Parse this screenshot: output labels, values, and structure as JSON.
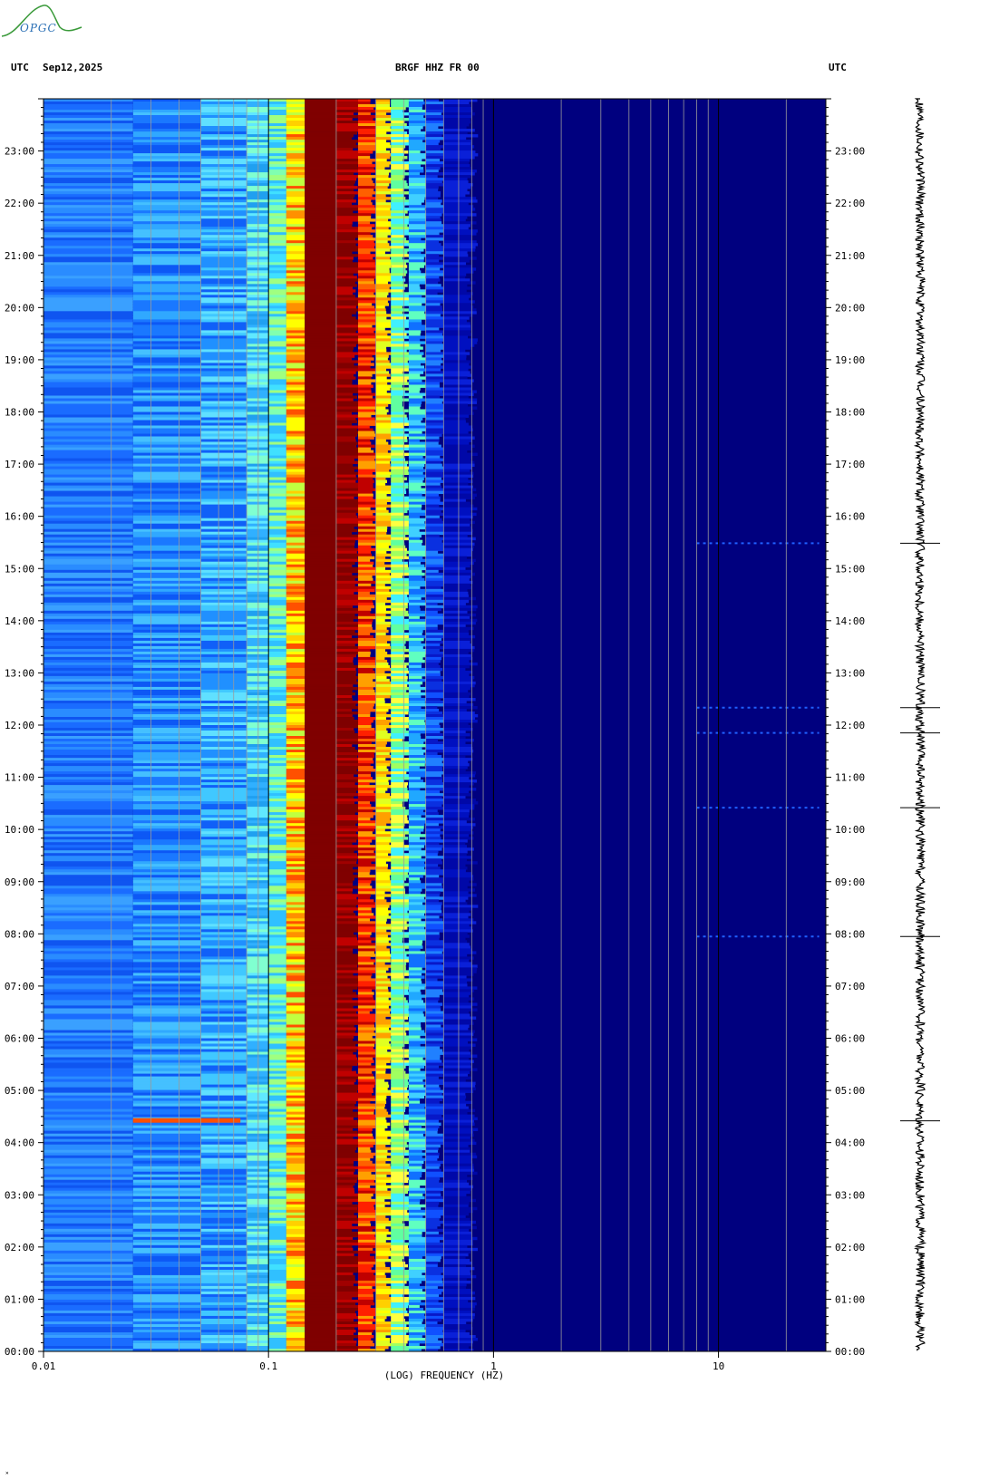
{
  "logo": {
    "text": "OPGC"
  },
  "header": {
    "left_zone": "UTC",
    "date": "Sep12,2025",
    "station": "BRGF HHZ FR 00",
    "right_zone": "UTC"
  },
  "chart_data": {
    "type": "heatmap",
    "title": "BRGF HHZ FR 00",
    "xlabel": "(LOG) FREQUENCY (HZ)",
    "x_scale": "log",
    "xlim": [
      0.01,
      30
    ],
    "x_tick_labels": [
      "0.01",
      "0.1",
      "1",
      "10"
    ],
    "x_tick_values": [
      0.01,
      0.1,
      1,
      10
    ],
    "ylim_hours": [
      0,
      24
    ],
    "y_tick_labels": [
      "00:00",
      "01:00",
      "02:00",
      "03:00",
      "04:00",
      "05:00",
      "06:00",
      "07:00",
      "08:00",
      "09:00",
      "10:00",
      "11:00",
      "12:00",
      "13:00",
      "14:00",
      "15:00",
      "16:00",
      "17:00",
      "18:00",
      "19:00",
      "20:00",
      "21:00",
      "22:00",
      "23:00"
    ],
    "spectral_bands": [
      {
        "f_min": 0.01,
        "f_max": 0.025,
        "level": "light blue"
      },
      {
        "f_min": 0.025,
        "f_max": 0.08,
        "level": "blue-cyan"
      },
      {
        "f_min": 0.08,
        "f_max": 0.12,
        "level": "cyan-green"
      },
      {
        "f_min": 0.12,
        "f_max": 0.145,
        "level": "yellow-orange"
      },
      {
        "f_min": 0.145,
        "f_max": 0.25,
        "level": "dark red (max)"
      },
      {
        "f_min": 0.25,
        "f_max": 0.3,
        "level": "red-orange"
      },
      {
        "f_min": 0.3,
        "f_max": 0.38,
        "level": "yellow"
      },
      {
        "f_min": 0.38,
        "f_max": 0.6,
        "level": "cyan to blue"
      },
      {
        "f_min": 0.6,
        "f_max": 30,
        "level": "dark blue (min)"
      }
    ],
    "events_utc": [
      {
        "time": "04:25",
        "f_range": [
          0.025,
          0.075
        ],
        "note": "red-orange band"
      },
      {
        "time": "07:57"
      },
      {
        "time": "10:25"
      },
      {
        "time": "11:51"
      },
      {
        "time": "12:20"
      },
      {
        "time": "15:29"
      }
    ],
    "colors": {
      "background": "#00007f",
      "low": "#0000ff",
      "mid": "#00ffff",
      "high": "#ffff00",
      "peak": "#7f0000"
    }
  }
}
